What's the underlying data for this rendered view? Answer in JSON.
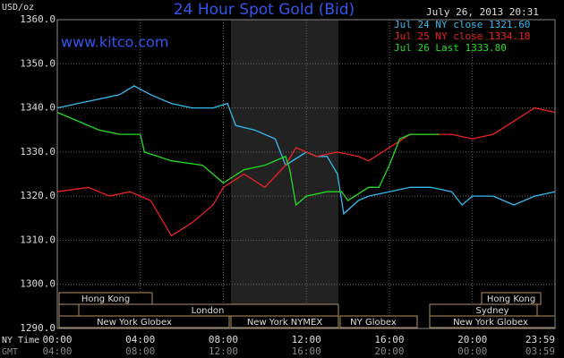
{
  "chart_data": {
    "type": "line",
    "title": "24 Hour Spot Gold (Bid)",
    "timestamp": "July 26, 2013 20:31",
    "source": "www.kitco.com",
    "y_label": "USD/oz",
    "x_label": "NY Time",
    "x2_label": "GMT",
    "xlim": [
      0,
      23.983
    ],
    "xticks": [
      {
        "value": 0,
        "label": "00:00"
      },
      {
        "value": 4,
        "label": "04:00"
      },
      {
        "value": 8,
        "label": "08:00"
      },
      {
        "value": 12,
        "label": "12:00"
      },
      {
        "value": 16,
        "label": "16:00"
      },
      {
        "value": 20,
        "label": "20:00"
      },
      {
        "value": 23.983,
        "label": "23:59"
      }
    ],
    "x2ticks": [
      {
        "value": 0,
        "label": "04:00"
      },
      {
        "value": 4,
        "label": "08:00"
      },
      {
        "value": 8,
        "label": "12:00"
      },
      {
        "value": 12,
        "label": "16:00"
      },
      {
        "value": 16,
        "label": "20:00"
      },
      {
        "value": 20,
        "label": "00:00"
      },
      {
        "value": 23.983,
        "label": "03:59"
      }
    ],
    "ylim": [
      1290,
      1360
    ],
    "yticks": [
      {
        "value": 1290,
        "label": "1290.0"
      },
      {
        "value": 1300,
        "label": "1300.0"
      },
      {
        "value": 1310,
        "label": "1310.0"
      },
      {
        "value": 1320,
        "label": "1320.0"
      },
      {
        "value": 1330,
        "label": "1330.0"
      },
      {
        "value": 1340,
        "label": "1340.0"
      },
      {
        "value": 1350,
        "label": "1350.0"
      },
      {
        "value": 1360,
        "label": "1360.0"
      }
    ],
    "grid": true,
    "series": [
      {
        "name": "Jul 24 NY close 1321.60",
        "color": "#33bbee",
        "x": [
          0,
          1,
          2,
          3,
          3.7,
          4.5,
          5.5,
          6.5,
          7.5,
          8.2,
          8.6,
          9.5,
          10.5,
          11,
          12,
          12.5,
          13,
          13.5,
          13.8,
          14.5,
          15,
          16,
          17,
          18,
          19,
          19.5,
          20,
          21,
          22,
          23,
          23.983
        ],
        "values": [
          1340,
          1341,
          1342,
          1343,
          1345,
          1343,
          1341,
          1340,
          1340,
          1341,
          1336,
          1335,
          1333,
          1327,
          1330,
          1329,
          1329,
          1325,
          1316,
          1319,
          1320,
          1321,
          1322,
          1322,
          1321,
          1318,
          1320,
          1320,
          1318,
          1320,
          1321
        ]
      },
      {
        "name": "Jul 25 NY close 1334.10",
        "color": "#ee2222",
        "x": [
          0,
          1.5,
          2.5,
          3.5,
          4.5,
          5.5,
          6.5,
          7.5,
          8,
          9,
          10,
          11,
          11.5,
          12.5,
          13.5,
          14.5,
          15,
          16,
          17,
          18,
          19,
          20,
          21,
          22,
          23,
          23.983
        ],
        "values": [
          1321,
          1322,
          1320,
          1321,
          1319,
          1311,
          1314,
          1318,
          1322,
          1325,
          1322,
          1327,
          1331,
          1329,
          1330,
          1329,
          1328,
          1331,
          1334,
          1334,
          1334,
          1333,
          1334,
          1337,
          1340,
          1339
        ]
      },
      {
        "name": "Jul 26 Last 1333.80",
        "color": "#22dd22",
        "x": [
          0,
          1,
          2,
          3,
          4,
          4.2,
          5.5,
          7,
          8,
          9,
          10,
          11,
          11.2,
          11.5,
          12,
          13,
          13.7,
          14,
          15,
          15.5,
          16,
          16.5,
          17,
          18,
          18.4
        ],
        "values": [
          1339,
          1337,
          1335,
          1334,
          1334,
          1330,
          1328,
          1327,
          1323,
          1326,
          1327,
          1329,
          1326,
          1318,
          1320,
          1321,
          1321,
          1319,
          1322,
          1322,
          1327,
          1333,
          1334,
          1334,
          1334
        ]
      }
    ]
  },
  "sessions": [
    "Hong Kong",
    "Hong Kong",
    "London",
    "Sydney",
    "New York Globex",
    "New York NYMEX",
    "NY Globex",
    "New York Globex"
  ]
}
